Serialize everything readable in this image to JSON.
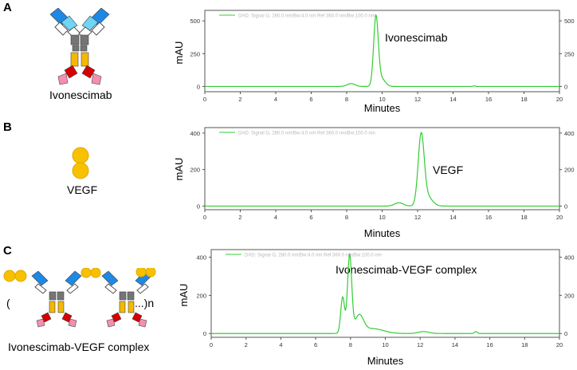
{
  "panels": [
    {
      "letter": "A",
      "molecule_label": "Ivonescimab"
    },
    {
      "letter": "B",
      "molecule_label": "VEGF"
    },
    {
      "letter": "C",
      "molecule_label": "Ivonescimab-VEGF complex",
      "open_paren": "(",
      "close_paren": "...)n"
    }
  ],
  "colors": {
    "trace": "#33cc33",
    "heavy_chain_top": "#1e88e5",
    "light_chain_top": "#6fd6f5",
    "hinge": "#757575",
    "fc_yellow": "#f5b800",
    "fc_red": "#d50000",
    "fc_pink": "#f48fb1",
    "vegf": "#f8c100"
  },
  "chart_data": [
    {
      "type": "line",
      "title": "DAD: Signal G, 280.0 nm/Bw:4.0 nm Ref 360.0 nm/Bw:100.0 nm",
      "xlabel": "Minutes",
      "ylabel": "mAU",
      "annotation": "Ivonescimab",
      "xlim": [
        0,
        20
      ],
      "ylim": [
        -40,
        580
      ],
      "x_ticks": [
        0,
        2,
        4,
        6,
        8,
        10,
        12,
        14,
        16,
        18,
        20
      ],
      "y_ticks": [
        0,
        250,
        500
      ],
      "y_ticks_right": [
        0,
        250,
        500
      ],
      "series": [
        {
          "name": "Ivonescimab",
          "peaks": [
            {
              "x": 8.25,
              "height": 22,
              "width": 0.22
            },
            {
              "x": 9.65,
              "height": 520,
              "width": 0.13
            },
            {
              "x": 9.95,
              "height": 60,
              "width": 0.22
            },
            {
              "x": 15.2,
              "height": 5,
              "width": 0.06
            }
          ]
        }
      ]
    },
    {
      "type": "line",
      "title": "DAD: Signal G, 280.0 nm/Bw:4.0 nm Ref 360.0 nm/Bw:100.0 nm",
      "xlabel": "Minutes",
      "ylabel": "mAU",
      "annotation": "VEGF",
      "xlim": [
        0,
        20
      ],
      "ylim": [
        -20,
        430
      ],
      "x_ticks": [
        0,
        2,
        4,
        6,
        8,
        10,
        12,
        14,
        16,
        18,
        20
      ],
      "y_ticks": [
        0,
        200,
        400
      ],
      "y_ticks_right": [
        0,
        200,
        400
      ],
      "series": [
        {
          "name": "VEGF",
          "peaks": [
            {
              "x": 10.95,
              "height": 18,
              "width": 0.25
            },
            {
              "x": 12.2,
              "height": 380,
              "width": 0.17
            },
            {
              "x": 12.55,
              "height": 50,
              "width": 0.28
            }
          ]
        }
      ]
    },
    {
      "type": "line",
      "title": "DAD: Signal G, 280.0 nm/Bw:4.0 nm Ref 360.0 nm/Bw:100.0 nm",
      "xlabel": "Minutes",
      "ylabel": "mAU",
      "annotation": "Ivonescimab-VEGF complex",
      "xlim": [
        0,
        20
      ],
      "ylim": [
        -20,
        440
      ],
      "x_ticks": [
        0,
        2,
        4,
        6,
        8,
        10,
        12,
        14,
        16,
        18,
        20
      ],
      "y_ticks": [
        0,
        200,
        400
      ],
      "y_ticks_right": [
        0,
        200,
        400
      ],
      "series": [
        {
          "name": "Ivonescimab-VEGF complex",
          "peaks": [
            {
              "x": 7.55,
              "height": 190,
              "width": 0.11
            },
            {
              "x": 7.95,
              "height": 405,
              "width": 0.12
            },
            {
              "x": 8.5,
              "height": 90,
              "width": 0.25
            },
            {
              "x": 9.3,
              "height": 25,
              "width": 0.6
            },
            {
              "x": 12.2,
              "height": 10,
              "width": 0.3
            },
            {
              "x": 15.2,
              "height": 10,
              "width": 0.08
            }
          ]
        }
      ]
    }
  ]
}
